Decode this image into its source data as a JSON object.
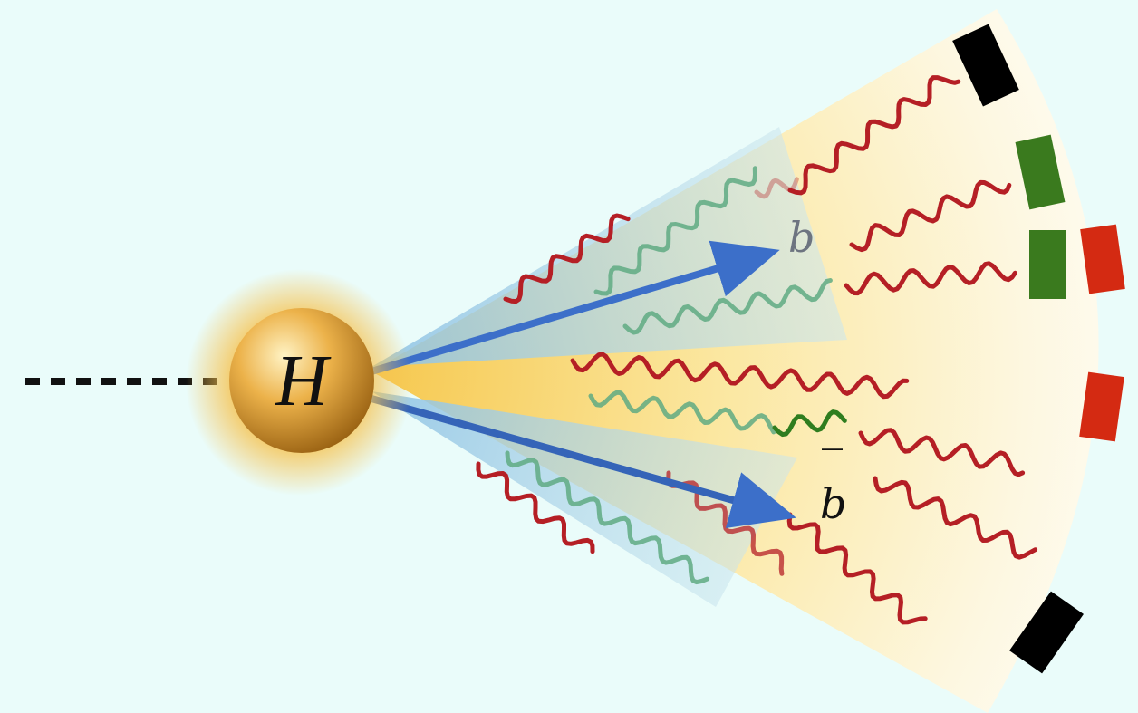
{
  "diagram": {
    "higgs_label": "H",
    "quark_label": "b",
    "antiquark_label": "b",
    "antiquark_bar": "‾",
    "colors": {
      "background": "#eafcfa",
      "fan": "#fbeeae",
      "higgs_core": "#e0a83a",
      "higgs_glow": "#f9d77a",
      "arrow": "#3c6fc9",
      "blue_cone": "#a7cfe6",
      "gluon_red": "#b51f25",
      "gluon_green": "#5faa82",
      "gluon_green_dark": "#2f7d1f",
      "detector_black": "#000000",
      "detector_green": "#3a7a1e",
      "detector_red": "#d42a12"
    },
    "detector_hits": [
      {
        "color": "black"
      },
      {
        "color": "green"
      },
      {
        "color": "green"
      },
      {
        "color": "red"
      },
      {
        "color": "red"
      },
      {
        "color": "black"
      }
    ]
  }
}
